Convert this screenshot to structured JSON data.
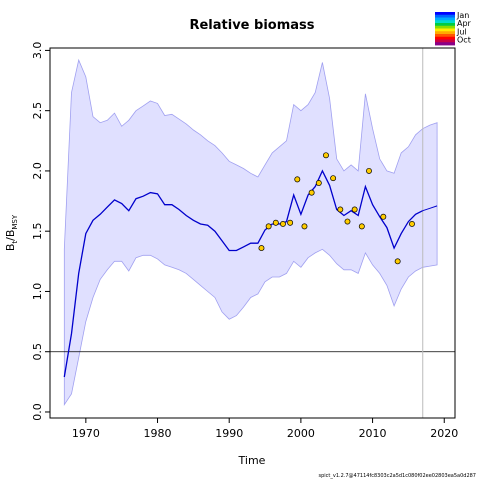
{
  "chart_data": {
    "type": "line",
    "title": "Relative biomass",
    "xlabel": "Time",
    "ylabel": "B_t/B_MSY",
    "ylabel_main": "B",
    "ylabel_sub1": "t",
    "ylabel_slash": "/B",
    "ylabel_sub2": "MSY",
    "xlim": [
      1965,
      2021.5
    ],
    "ylim": [
      -0.05,
      3.02
    ],
    "xticks": [
      1970,
      1980,
      1990,
      2000,
      2010,
      2020
    ],
    "yticks": [
      0.0,
      0.5,
      1.0,
      1.5,
      2.0,
      2.5,
      3.0
    ],
    "xtick_labels": [
      "1970",
      "1980",
      "1990",
      "2000",
      "2010",
      "2020"
    ],
    "ytick_labels": [
      "0.0",
      "0.5",
      "1.0",
      "1.5",
      "2.0",
      "2.5",
      "3.0"
    ],
    "reference_line_y": 0.5,
    "vertical_line_x": 2017,
    "ci_color": "#e0e0ff",
    "ci_edge_color": "#a0a0f0",
    "line_color": "#0000cc",
    "point_fill": "#ffcc00",
    "series": [
      {
        "name": "estimate",
        "x": [
          1967,
          1968,
          1969,
          1970,
          1971,
          1972,
          1973,
          1974,
          1975,
          1976,
          1977,
          1978,
          1979,
          1980,
          1981,
          1982,
          1983,
          1984,
          1985,
          1986,
          1987,
          1988,
          1989,
          1990,
          1991,
          1992,
          1993,
          1994,
          1995,
          1996,
          1997,
          1998,
          1999,
          2000,
          2001,
          2002,
          2003,
          2004,
          2005,
          2006,
          2007,
          2008,
          2009,
          2010,
          2011,
          2012,
          2013,
          2014,
          2015,
          2016,
          2017
        ],
        "y": [
          0.29,
          0.65,
          1.15,
          1.48,
          1.59,
          1.64,
          1.7,
          1.76,
          1.73,
          1.67,
          1.77,
          1.79,
          1.82,
          1.81,
          1.72,
          1.72,
          1.68,
          1.63,
          1.59,
          1.56,
          1.55,
          1.5,
          1.42,
          1.34,
          1.34,
          1.37,
          1.4,
          1.4,
          1.51,
          1.56,
          1.56,
          1.58,
          1.8,
          1.64,
          1.8,
          1.87,
          2.0,
          1.88,
          1.68,
          1.63,
          1.67,
          1.63,
          1.87,
          1.72,
          1.62,
          1.53,
          1.36,
          1.48,
          1.58,
          1.64,
          1.67
        ]
      },
      {
        "name": "forecast",
        "x": [
          2017,
          2018,
          2019
        ],
        "y": [
          1.67,
          1.69,
          1.71
        ]
      }
    ],
    "ci": {
      "x": [
        1967,
        1968,
        1969,
        1970,
        1971,
        1972,
        1973,
        1974,
        1975,
        1976,
        1977,
        1978,
        1979,
        1980,
        1981,
        1982,
        1983,
        1984,
        1985,
        1986,
        1987,
        1988,
        1989,
        1990,
        1991,
        1992,
        1993,
        1994,
        1995,
        1996,
        1997,
        1998,
        1999,
        2000,
        2001,
        2002,
        2003,
        2004,
        2005,
        2006,
        2007,
        2008,
        2009,
        2010,
        2011,
        2012,
        2013,
        2014,
        2015,
        2016,
        2017,
        2018,
        2019
      ],
      "upper": [
        1.35,
        2.65,
        2.92,
        2.78,
        2.45,
        2.4,
        2.42,
        2.48,
        2.37,
        2.42,
        2.5,
        2.54,
        2.58,
        2.56,
        2.46,
        2.47,
        2.43,
        2.39,
        2.34,
        2.3,
        2.25,
        2.21,
        2.15,
        2.08,
        2.05,
        2.02,
        1.98,
        1.95,
        2.05,
        2.15,
        2.2,
        2.25,
        2.55,
        2.5,
        2.55,
        2.65,
        2.9,
        2.6,
        2.1,
        2.0,
        2.05,
        2.0,
        2.64,
        2.35,
        2.1,
        2.0,
        1.98,
        2.15,
        2.2,
        2.3,
        2.35,
        2.38,
        2.4
      ],
      "lower": [
        0.06,
        0.15,
        0.45,
        0.75,
        0.95,
        1.1,
        1.18,
        1.25,
        1.25,
        1.17,
        1.28,
        1.3,
        1.3,
        1.27,
        1.22,
        1.2,
        1.18,
        1.15,
        1.1,
        1.05,
        1.0,
        0.95,
        0.83,
        0.77,
        0.8,
        0.87,
        0.95,
        0.98,
        1.08,
        1.12,
        1.12,
        1.15,
        1.25,
        1.2,
        1.28,
        1.32,
        1.35,
        1.3,
        1.23,
        1.18,
        1.18,
        1.15,
        1.32,
        1.22,
        1.15,
        1.05,
        0.88,
        1.02,
        1.12,
        1.17,
        1.2,
        1.21,
        1.22
      ]
    },
    "points": {
      "x": [
        1994.5,
        1995.5,
        1996.5,
        1997.5,
        1998.5,
        1999.5,
        2000.5,
        2001.5,
        2002.5,
        2003.5,
        2004.5,
        2005.5,
        2006.5,
        2007.5,
        2008.5,
        2009.5,
        2011.5,
        2013.5,
        2015.5
      ],
      "y": [
        1.36,
        1.54,
        1.57,
        1.56,
        1.57,
        1.93,
        1.54,
        1.82,
        1.9,
        2.13,
        1.94,
        1.68,
        1.58,
        1.68,
        1.54,
        2.0,
        1.62,
        1.25,
        1.56
      ]
    },
    "legend": {
      "labels": [
        "Jan",
        "Apr",
        "Jul",
        "Oct"
      ],
      "colors": [
        "#0000ff",
        "#0066ff",
        "#00aaff",
        "#00ddcc",
        "#00cc44",
        "#88dd00",
        "#ffee00",
        "#ffaa00",
        "#ff5500",
        "#ff0000",
        "#cc0044",
        "#880088"
      ]
    },
    "footer": "spict_v1.2.7@47114fc8303c2a5d1c080f02ee02803ea5a0d287"
  }
}
